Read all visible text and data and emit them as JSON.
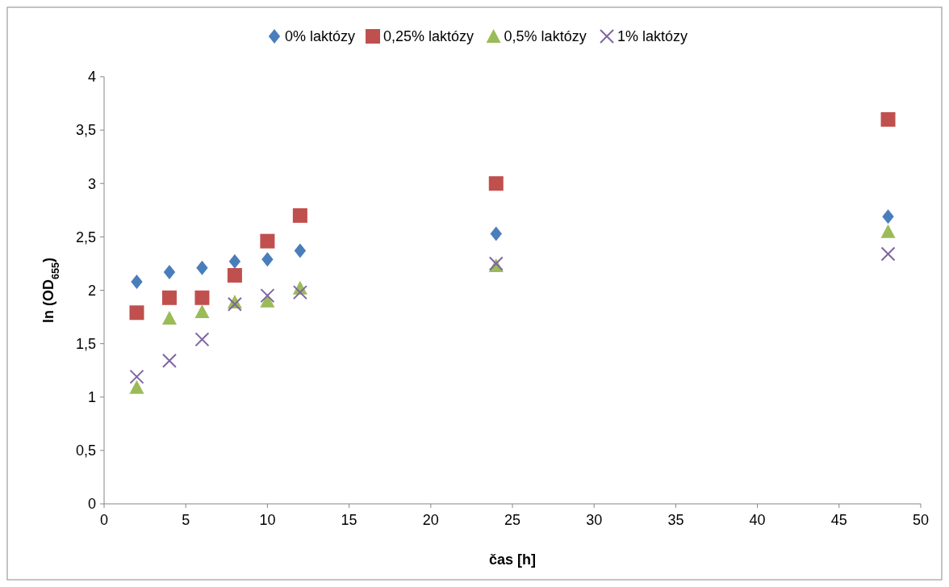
{
  "chart_data": {
    "type": "scatter",
    "xlabel": "čas [h]",
    "ylabel": "ln (OD$_{655}$)",
    "xlim": [
      0,
      50
    ],
    "xticks": [
      0,
      5,
      10,
      15,
      20,
      25,
      30,
      35,
      40,
      45,
      50
    ],
    "ylim": [
      0,
      4
    ],
    "yticks": [
      0,
      {
        "value": 0.5,
        "label": "0,5"
      },
      1,
      {
        "value": 1.5,
        "label": "1,5"
      },
      2,
      {
        "value": 2.5,
        "label": "2,5"
      },
      3,
      {
        "value": 3.5,
        "label": "3,5"
      },
      4
    ],
    "grid": false,
    "legend": "top",
    "x": [
      2,
      4,
      6,
      8,
      10,
      12,
      24,
      48
    ],
    "series": [
      {
        "name": "0% laktózy",
        "color": "#4a7ebb",
        "marker": "diamond",
        "values": [
          2.08,
          2.17,
          2.21,
          2.27,
          2.29,
          2.37,
          2.53,
          2.69
        ]
      },
      {
        "name": "0,25% laktózy",
        "color": "#c0504d",
        "marker": "square",
        "values": [
          1.79,
          1.93,
          1.93,
          2.14,
          2.46,
          2.7,
          3.0,
          3.6
        ]
      },
      {
        "name": "0,5% laktózy",
        "color": "#9bbb59",
        "marker": "triangle",
        "values": [
          1.09,
          1.74,
          1.8,
          1.89,
          1.9,
          2.02,
          2.23,
          2.55
        ]
      },
      {
        "name": "1% laktózy",
        "color": "#8064a2",
        "marker": "cross",
        "values": [
          1.19,
          1.34,
          1.54,
          1.87,
          1.95,
          1.98,
          2.25,
          2.34
        ]
      }
    ]
  }
}
